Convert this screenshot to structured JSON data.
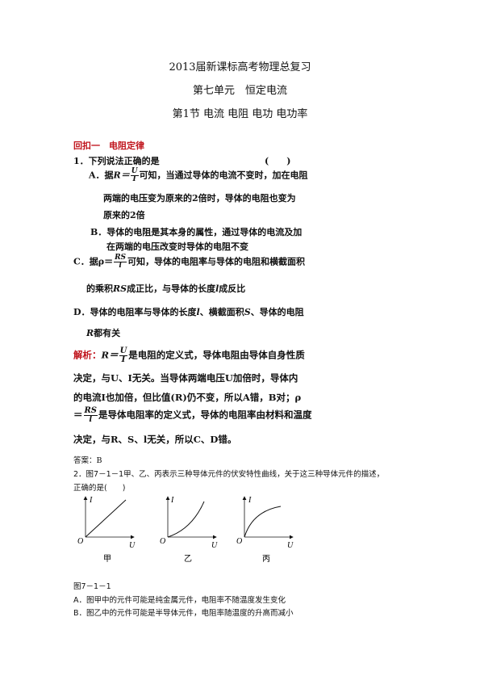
{
  "header": {
    "title": "2013届新课标高考物理总复习",
    "unit": "第七单元　恒定电流",
    "section": "第1节  电流  电阻  电功  电功率"
  },
  "part1": {
    "heading": "回扣一　电阻定律",
    "q1": {
      "stem": "1．下列说法正确的是",
      "blank": "(　　)",
      "a": {
        "prefix": "A．据",
        "lhs": "R＝",
        "num": "U",
        "den": "I",
        "line1": "可知，当通过导体的电流不变时，加在电阻",
        "line2": "两端的电压变为原来的2倍时，导体的电阻也变为",
        "line3": "原来的2倍"
      },
      "b": {
        "line1": "B．导体的电阻是其本身的属性，通过导体的电流及加",
        "line2": "在两端的电压改变时导体的电阻不变"
      },
      "c": {
        "prefix": "C．据ρ＝",
        "num": "RS",
        "den": "l",
        "line1": "可知，导体的电阻率与导体的电阻和横截面积",
        "line2a": "的乘积",
        "rs": "RS",
        "line2b": "成正比，与导体的长度",
        "l": "l",
        "line2c": "成反比"
      },
      "d": {
        "line1a": "D．导体的电阻率与导体的长度",
        "l": "l",
        "line1b": "、横截面积",
        "s": "S",
        "line1c": "、导体的电阻",
        "line2a": "R",
        "line2b": "都有关"
      }
    },
    "explanation": {
      "label": "解析：",
      "l1a": "R＝",
      "l1num": "U",
      "l1den": "I",
      "l1b": "是电阻的定义式，导体电阻由导体自身性质",
      "l2": "决定，与U、I无关。当导体两端电压U加倍时，导体内",
      "l3": "的电流I也加倍，但比值(R)仍不变，所以A错，B对；ρ",
      "l4a": "＝",
      "l4num": "RS",
      "l4den": "l",
      "l4b": "是导体电阻率的定义式，导体的电阻率由材料和温度",
      "l5": "决定，与R、S、l无关，所以C、D错。"
    },
    "answer": "答案：B"
  },
  "q2": {
    "line1": "2．图7－1－1甲、乙、丙表示三种导体元件的伏安特性曲线，关于这三种导体元件的描述，",
    "line2": "正确的是(　　)",
    "graphs": [
      {
        "caption": "甲",
        "ylabel": "I",
        "xlabel": "U",
        "origin": "O"
      },
      {
        "caption": "乙",
        "ylabel": "I",
        "xlabel": "U",
        "origin": "O"
      },
      {
        "caption": "丙",
        "ylabel": "I",
        "xlabel": "U",
        "origin": "O"
      }
    ],
    "figure_label": "图7－1－1",
    "optA": "A．图甲中的元件可能是纯金属元件，电阻率不随温度发生变化",
    "optB": "B．图乙中的元件可能是半导体元件，电阻率随温度的升高而减小"
  }
}
